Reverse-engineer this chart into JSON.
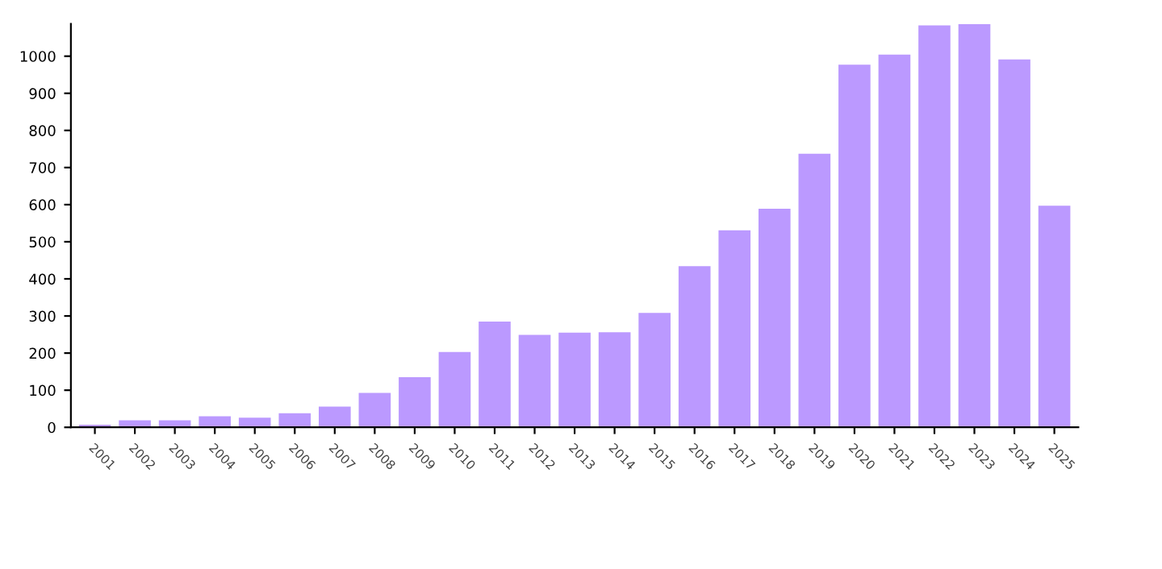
{
  "chart_data": {
    "type": "bar",
    "categories": [
      "2001",
      "2002",
      "2003",
      "2004",
      "2005",
      "2006",
      "2007",
      "2008",
      "2009",
      "2010",
      "2011",
      "2012",
      "2013",
      "2014",
      "2015",
      "2016",
      "2017",
      "2018",
      "2019",
      "2020",
      "2021",
      "2022",
      "2023",
      "2024",
      "2025"
    ],
    "values": [
      7,
      19,
      19,
      30,
      26,
      38,
      56,
      93,
      135,
      203,
      285,
      249,
      255,
      256,
      308,
      434,
      531,
      589,
      737,
      977,
      1004,
      1083,
      1087,
      991,
      597
    ],
    "color": "#bb99ff",
    "ylim": [
      0,
      1087
    ],
    "yticks": [
      0,
      100,
      200,
      300,
      400,
      500,
      600,
      700,
      800,
      900,
      1000
    ],
    "grid": false
  }
}
